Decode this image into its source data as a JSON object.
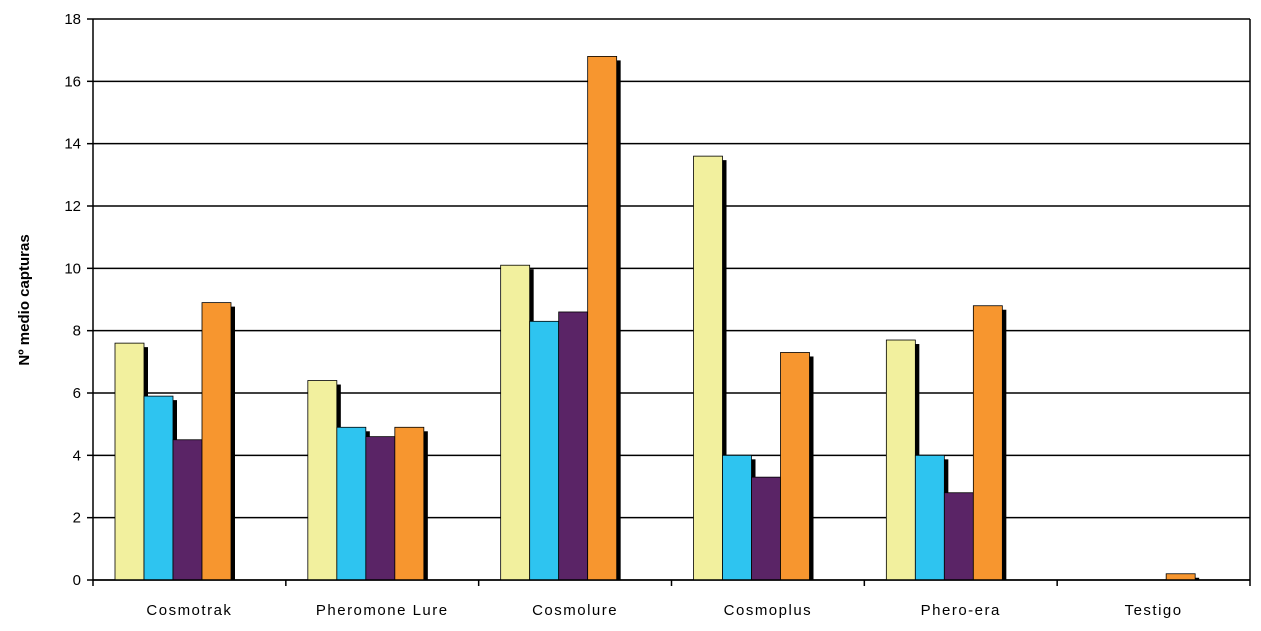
{
  "chart_data": {
    "type": "bar",
    "title": "",
    "xlabel": "",
    "ylabel": "Nº medio capturas",
    "ylim": [
      0,
      18
    ],
    "yticks": [
      0,
      2,
      4,
      6,
      8,
      10,
      12,
      14,
      16,
      18
    ],
    "grid": true,
    "legend": "none",
    "categories": [
      "Cosmotrak",
      "Pheromone Lure",
      "Cosmolure",
      "Cosmoplus",
      "Phero-era",
      "Testigo"
    ],
    "series": [
      {
        "color": "#F2F09E",
        "values": [
          7.6,
          6.4,
          10.1,
          13.6,
          7.7,
          0
        ]
      },
      {
        "color": "#2EC4F0",
        "values": [
          5.9,
          4.9,
          8.3,
          4.0,
          4.0,
          0
        ]
      },
      {
        "color": "#5A2466",
        "values": [
          4.5,
          4.6,
          8.6,
          3.3,
          2.8,
          0
        ]
      },
      {
        "color": "#F7962F",
        "values": [
          8.9,
          4.9,
          16.8,
          7.3,
          8.8,
          0.2
        ]
      }
    ]
  }
}
